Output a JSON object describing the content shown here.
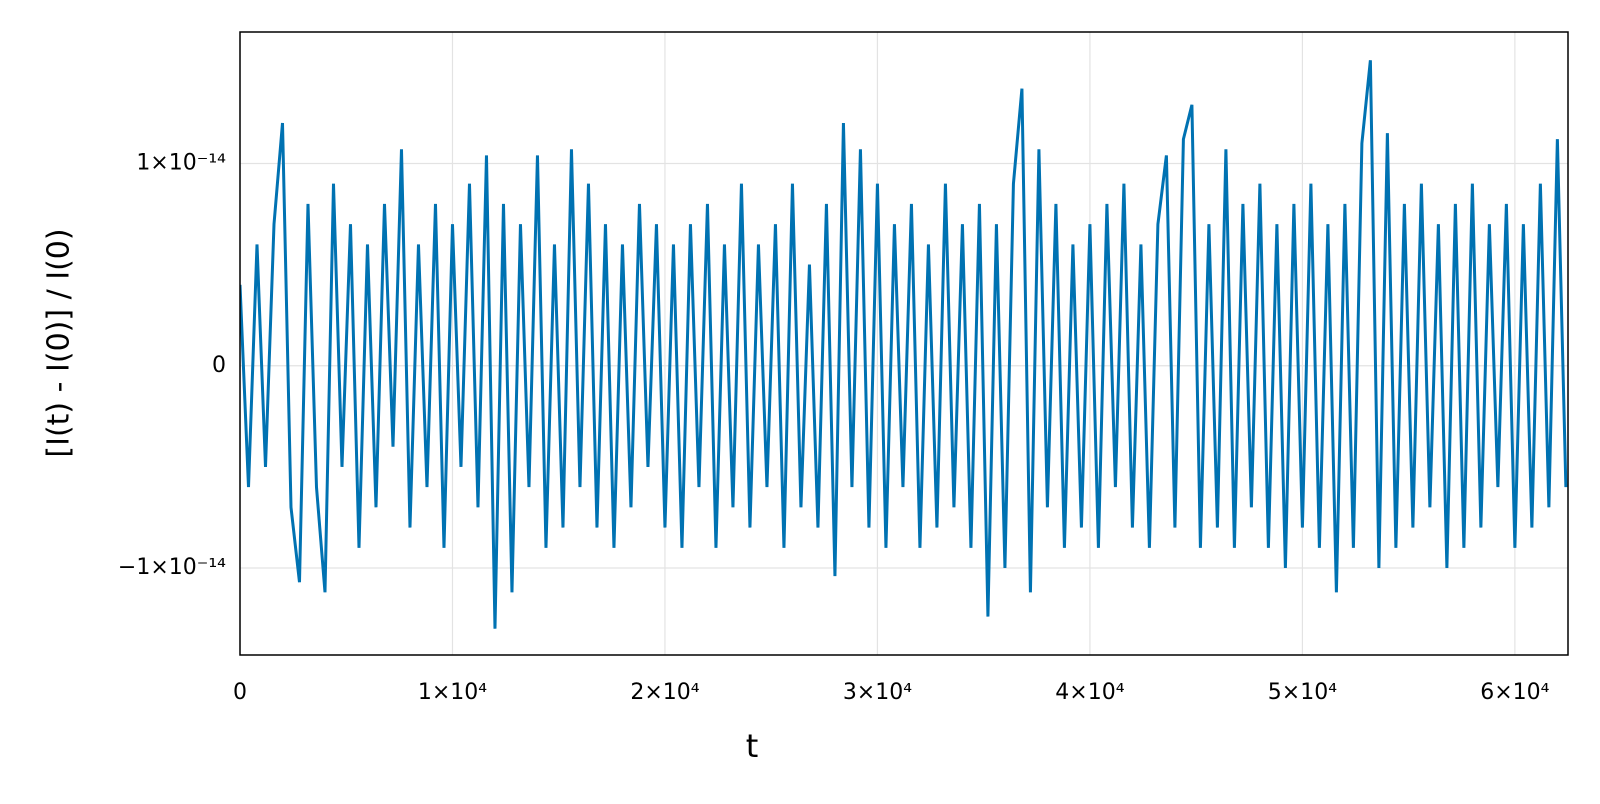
{
  "chart_data": {
    "type": "line",
    "xlabel": "t",
    "ylabel": "[I(t) - I(0)] / I(0)",
    "x": [
      0,
      400,
      800,
      1200,
      1600,
      2000,
      2400,
      2800,
      3200,
      3600,
      4000,
      4400,
      4800,
      5200,
      5600,
      6000,
      6400,
      6800,
      7200,
      7600,
      8000,
      8400,
      8800,
      9200,
      9600,
      10000,
      10400,
      10800,
      11200,
      11600,
      12000,
      12400,
      12800,
      13200,
      13600,
      14000,
      14400,
      14800,
      15200,
      15600,
      16000,
      16400,
      16800,
      17200,
      17600,
      18000,
      18400,
      18800,
      19200,
      19600,
      20000,
      20400,
      20800,
      21200,
      21600,
      22000,
      22400,
      22800,
      23200,
      23600,
      24000,
      24400,
      24800,
      25200,
      25600,
      26000,
      26400,
      26800,
      27200,
      27600,
      28000,
      28400,
      28800,
      29200,
      29600,
      30000,
      30400,
      30800,
      31200,
      31600,
      32000,
      32400,
      32800,
      33200,
      33600,
      34000,
      34400,
      34800,
      35200,
      35600,
      36000,
      36400,
      36800,
      37200,
      37600,
      38000,
      38400,
      38800,
      39200,
      39600,
      40000,
      40400,
      40800,
      41200,
      41600,
      42000,
      42400,
      42800,
      43200,
      43600,
      44000,
      44400,
      44800,
      45200,
      45600,
      46000,
      46400,
      46800,
      47200,
      47600,
      48000,
      48400,
      48800,
      49200,
      49600,
      50000,
      50400,
      50800,
      51200,
      51600,
      52000,
      52400,
      52800,
      53200,
      53600,
      54000,
      54400,
      54800,
      55200,
      55600,
      56000,
      56400,
      56800,
      57200,
      57600,
      58000,
      58400,
      58800,
      59200,
      59600,
      60000,
      60400,
      60800,
      61200,
      61600,
      62000,
      62400
    ],
    "values": [
      4e-15,
      -6e-15,
      6e-15,
      -5e-15,
      7e-15,
      1.2e-14,
      -7e-15,
      -1.07e-14,
      8e-15,
      -6e-15,
      -1.12e-14,
      9e-15,
      -5e-15,
      7e-15,
      -9e-15,
      6e-15,
      -7e-15,
      8e-15,
      -4e-15,
      1.07e-14,
      -8e-15,
      6e-15,
      -6e-15,
      8e-15,
      -9e-15,
      7e-15,
      -5e-15,
      9e-15,
      -7e-15,
      1.04e-14,
      -1.3e-14,
      8e-15,
      -1.12e-14,
      7e-15,
      -6e-15,
      1.04e-14,
      -9e-15,
      6e-15,
      -8e-15,
      1.07e-14,
      -6e-15,
      9e-15,
      -8e-15,
      7e-15,
      -9e-15,
      6e-15,
      -7e-15,
      8e-15,
      -5e-15,
      7e-15,
      -8e-15,
      6e-15,
      -9e-15,
      7e-15,
      -6e-15,
      8e-15,
      -9e-15,
      6e-15,
      -7e-15,
      9e-15,
      -8e-15,
      6e-15,
      -6e-15,
      7e-15,
      -9e-15,
      9e-15,
      -7e-15,
      5e-15,
      -8e-15,
      8e-15,
      -1.04e-14,
      1.2e-14,
      -6e-15,
      1.07e-14,
      -8e-15,
      9e-15,
      -9e-15,
      7e-15,
      -6e-15,
      8e-15,
      -9e-15,
      6e-15,
      -8e-15,
      9e-15,
      -7e-15,
      7e-15,
      -9e-15,
      8e-15,
      -1.24e-14,
      7e-15,
      -1e-14,
      9e-15,
      1.37e-14,
      -1.12e-14,
      1.07e-14,
      -7e-15,
      8e-15,
      -9e-15,
      6e-15,
      -8e-15,
      7e-15,
      -9e-15,
      8e-15,
      -6e-15,
      9e-15,
      -8e-15,
      6e-15,
      -9e-15,
      7e-15,
      1.04e-14,
      -8e-15,
      1.12e-14,
      1.29e-14,
      -9e-15,
      7e-15,
      -8e-15,
      1.07e-14,
      -9e-15,
      8e-15,
      -7e-15,
      9e-15,
      -9e-15,
      7e-15,
      -1e-14,
      8e-15,
      -8e-15,
      9e-15,
      -9e-15,
      7e-15,
      -1.12e-14,
      8e-15,
      -9e-15,
      1.1e-14,
      1.51e-14,
      -1e-14,
      1.15e-14,
      -9e-15,
      8e-15,
      -8e-15,
      9e-15,
      -7e-15,
      7e-15,
      -1e-14,
      8e-15,
      -9e-15,
      9e-15,
      -8e-15,
      7e-15,
      -6e-15,
      8e-15,
      -9e-15,
      7e-15,
      -8e-15,
      9e-15,
      -7e-15,
      1.12e-14,
      -6e-15
    ],
    "color": "#0072b2",
    "xlim": [
      0,
      62500
    ],
    "ylim": [
      -1.43e-14,
      1.65e-14
    ],
    "xticks": [
      0,
      {
        "value": 10000,
        "label": "1×10⁴"
      },
      {
        "value": 20000,
        "label": "2×10⁴"
      },
      {
        "value": 30000,
        "label": "3×10⁴"
      },
      {
        "value": 40000,
        "label": "4×10⁴"
      },
      {
        "value": 50000,
        "label": "5×10⁴"
      },
      {
        "value": 60000,
        "label": "6×10⁴"
      }
    ],
    "yticks": [
      {
        "value": -1e-14,
        "label": "−1×10⁻¹⁴"
      },
      0,
      {
        "value": 1e-14,
        "label": "1×10⁻¹⁴"
      }
    ],
    "grid": true
  }
}
